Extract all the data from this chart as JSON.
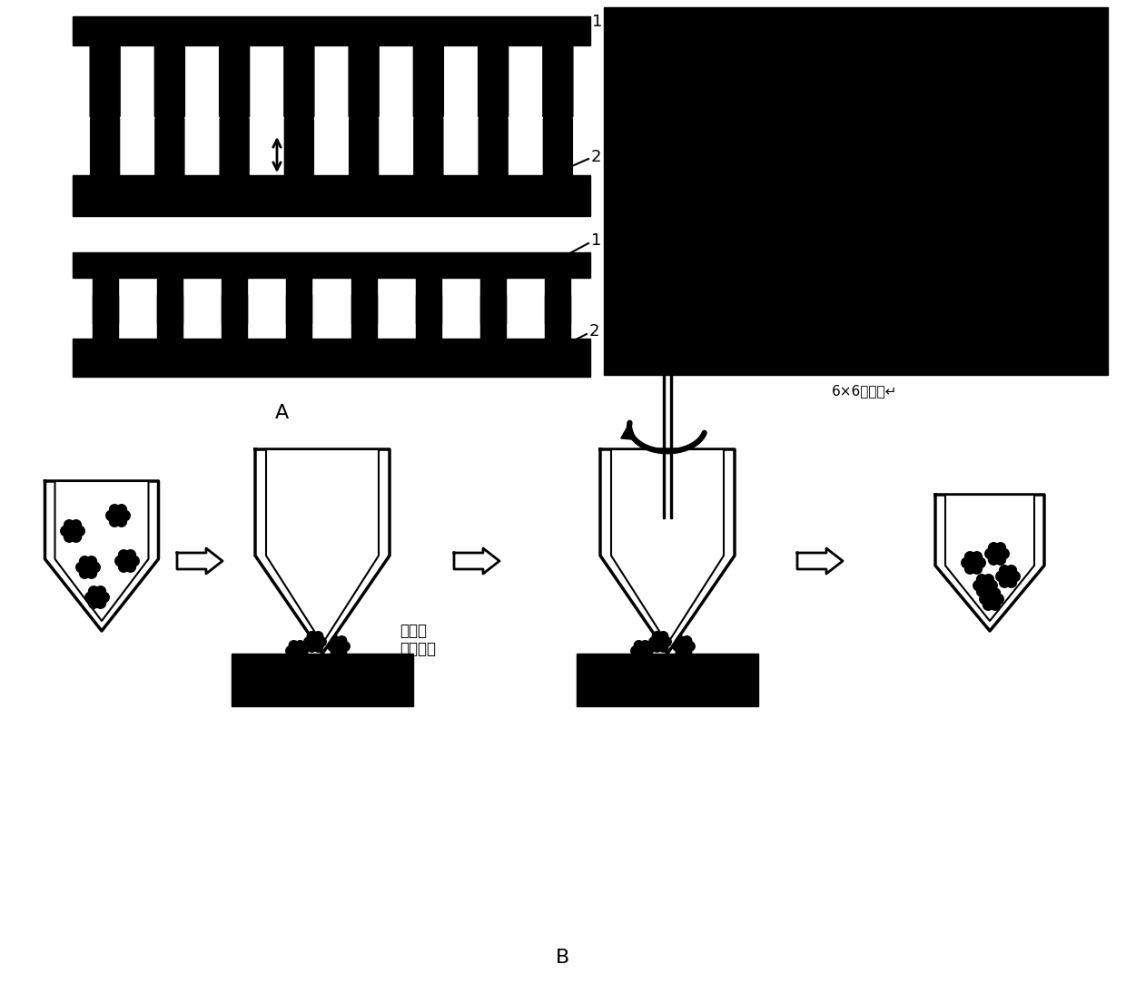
{
  "bg_color": "#ffffff",
  "label_1": "1",
  "label_2": "2",
  "label_A": "A",
  "label_B": "B",
  "microarray_label": "6×6微阵列↵",
  "magnet_label": "离合式\n外接磁场",
  "figure_width": 12.4,
  "figure_height": 10.84
}
